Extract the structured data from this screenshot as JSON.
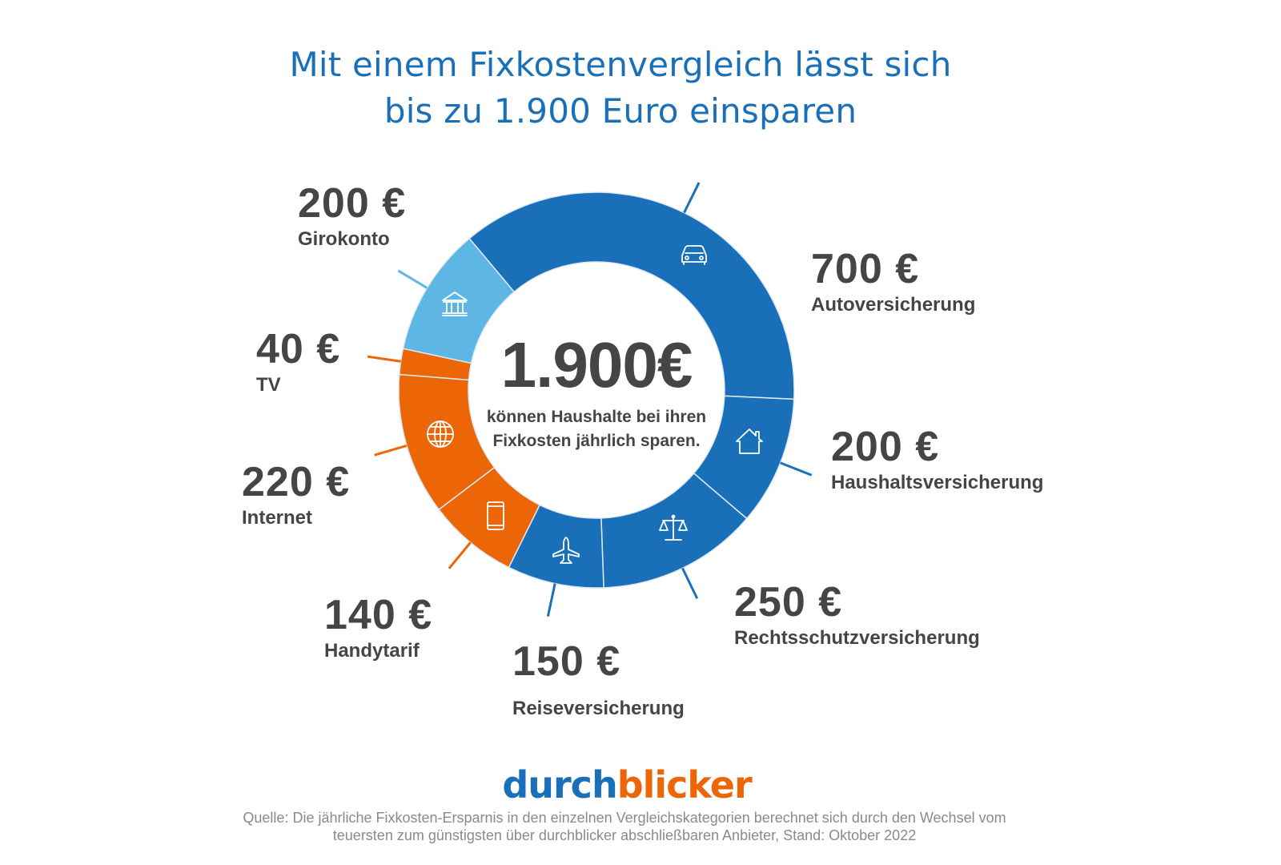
{
  "title": {
    "line1": "Mit einem Fixkostenvergleich lässt sich",
    "line2": "bis zu 1.900 Euro einsparen"
  },
  "center": {
    "total": "1.900€",
    "line1": "können Haushalte bei ihren",
    "line2": "Fixkosten jährlich sparen."
  },
  "colors": {
    "blue": "#1a70b8",
    "light_blue": "#5eb6e4",
    "orange": "#ec6608",
    "text": "#454545",
    "source": "#8a8a8a"
  },
  "labels": {
    "auto": {
      "value": "700 €",
      "category": "Autoversicherung"
    },
    "haushalt": {
      "value": "200 €",
      "category": "Haushaltsversicherung"
    },
    "rechtsschutz": {
      "value": "250 €",
      "category": "Rechtsschutzversicherung"
    },
    "reise": {
      "value": "150 €",
      "category": "Reiseversicherung"
    },
    "handy": {
      "value": "140 €",
      "category": "Handytarif"
    },
    "internet": {
      "value": "220 €",
      "category": "Internet"
    },
    "tv": {
      "value": "40 €",
      "category": "TV"
    },
    "giro": {
      "value": "200 €",
      "category": "Girokonto"
    }
  },
  "logo": {
    "part1": "durch",
    "part2": "blicker"
  },
  "source": {
    "line1": "Quelle: Die jährliche Fixkosten-Ersparnis in den einzelnen Vergleichskategorien berechnet sich durch den Wechsel vom",
    "line2": "teuersten zum günstigsten über durchblicker abschließbaren Anbieter, Stand: Oktober 2022"
  },
  "chart_data": {
    "type": "pie",
    "subtype": "donut",
    "title": "Mit einem Fixkostenvergleich lässt sich bis zu 1.900 Euro einsparen",
    "center_label": "1.900€ können Haushalte bei ihren Fixkosten jährlich sparen.",
    "unit": "€",
    "total": 1900,
    "categories": [
      "Autoversicherung",
      "Haushaltsversicherung",
      "Rechtsschutzversicherung",
      "Reiseversicherung",
      "Handytarif",
      "Internet",
      "TV",
      "Girokonto"
    ],
    "values": [
      700,
      200,
      250,
      150,
      140,
      220,
      40,
      200
    ],
    "colors": [
      "#1a70b8",
      "#1a70b8",
      "#1a70b8",
      "#1a70b8",
      "#ec6608",
      "#ec6608",
      "#ec6608",
      "#5eb6e4"
    ],
    "icons": [
      "car-icon",
      "house-icon",
      "scales-icon",
      "airplane-icon",
      "phone-icon",
      "globe-icon",
      null,
      "bank-icon"
    ],
    "legend": "none (direct labels)"
  }
}
